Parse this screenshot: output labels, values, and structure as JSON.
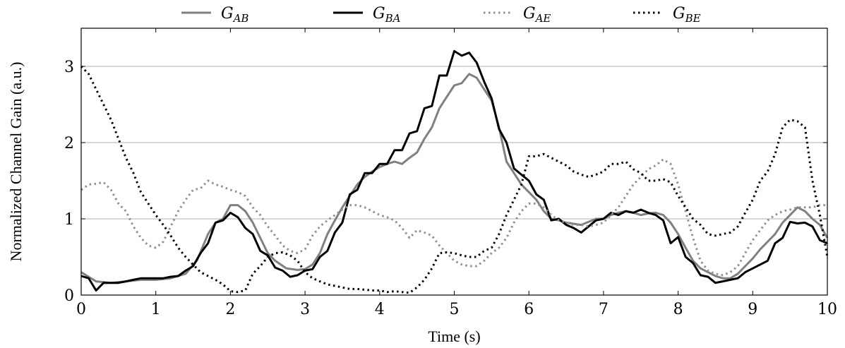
{
  "chart_data": {
    "type": "line",
    "xlabel": "Time (s)",
    "ylabel": "Normalized Channel Gain (a.u.)",
    "xlim": [
      0,
      10
    ],
    "ylim": [
      0,
      3.5
    ],
    "xticks": [
      "0",
      "1",
      "2",
      "3",
      "4",
      "5",
      "6",
      "7",
      "8",
      "9",
      "10"
    ],
    "yticks": [
      "0",
      "1",
      "2",
      "3"
    ],
    "grid": "horizontal",
    "legend_position": "top-center",
    "series": [
      {
        "name": "G_AB",
        "label_main": "G",
        "label_sub": "AB",
        "color": "#808080",
        "dash": "solid",
        "x": [
          0,
          0.2,
          0.4,
          0.6,
          0.8,
          1.0,
          1.2,
          1.4,
          1.55,
          1.7,
          1.8,
          1.9,
          2.0,
          2.1,
          2.2,
          2.3,
          2.4,
          2.5,
          2.6,
          2.75,
          2.9,
          3.0,
          3.1,
          3.2,
          3.3,
          3.4,
          3.5,
          3.6,
          3.7,
          3.8,
          3.9,
          4.0,
          4.1,
          4.2,
          4.3,
          4.4,
          4.5,
          4.6,
          4.7,
          4.8,
          4.9,
          5.0,
          5.1,
          5.2,
          5.3,
          5.4,
          5.5,
          5.6,
          5.7,
          5.8,
          5.9,
          6.0,
          6.1,
          6.2,
          6.3,
          6.4,
          6.5,
          6.7,
          6.9,
          7.0,
          7.1,
          7.2,
          7.3,
          7.4,
          7.5,
          7.6,
          7.7,
          7.8,
          7.9,
          8.0,
          8.1,
          8.2,
          8.3,
          8.4,
          8.5,
          8.6,
          8.7,
          8.8,
          8.9,
          9.0,
          9.1,
          9.2,
          9.3,
          9.4,
          9.5,
          9.6,
          9.7,
          9.8,
          9.9,
          10.0
        ],
        "y": [
          0.3,
          0.18,
          0.16,
          0.18,
          0.2,
          0.2,
          0.22,
          0.28,
          0.45,
          0.8,
          0.95,
          1.0,
          1.18,
          1.18,
          1.1,
          0.95,
          0.75,
          0.55,
          0.45,
          0.35,
          0.33,
          0.34,
          0.4,
          0.55,
          0.8,
          0.98,
          1.15,
          1.3,
          1.45,
          1.55,
          1.62,
          1.68,
          1.72,
          1.75,
          1.72,
          1.8,
          1.87,
          2.05,
          2.2,
          2.45,
          2.6,
          2.75,
          2.78,
          2.9,
          2.85,
          2.7,
          2.55,
          2.2,
          1.75,
          1.6,
          1.45,
          1.35,
          1.25,
          1.1,
          1.0,
          0.98,
          0.95,
          0.92,
          1.0,
          1.0,
          1.05,
          1.08,
          1.1,
          1.08,
          1.05,
          1.07,
          1.08,
          1.05,
          0.95,
          0.8,
          0.62,
          0.45,
          0.35,
          0.3,
          0.25,
          0.22,
          0.22,
          0.28,
          0.38,
          0.48,
          0.6,
          0.7,
          0.8,
          0.95,
          1.05,
          1.15,
          1.1,
          1.0,
          0.92,
          0.75
        ]
      },
      {
        "name": "G_BA",
        "label_main": "G",
        "label_sub": "BA",
        "color": "#000000",
        "dash": "solid",
        "x": [
          0,
          0.1,
          0.2,
          0.3,
          0.4,
          0.5,
          0.6,
          0.7,
          0.8,
          0.9,
          1.0,
          1.1,
          1.2,
          1.3,
          1.4,
          1.5,
          1.6,
          1.7,
          1.8,
          1.9,
          2.0,
          2.1,
          2.2,
          2.3,
          2.4,
          2.5,
          2.6,
          2.7,
          2.8,
          2.9,
          3.0,
          3.1,
          3.2,
          3.3,
          3.4,
          3.5,
          3.6,
          3.7,
          3.8,
          3.9,
          4.0,
          4.1,
          4.2,
          4.3,
          4.4,
          4.5,
          4.6,
          4.7,
          4.8,
          4.9,
          5.0,
          5.1,
          5.2,
          5.3,
          5.4,
          5.5,
          5.6,
          5.7,
          5.8,
          5.9,
          6.0,
          6.1,
          6.2,
          6.3,
          6.4,
          6.5,
          6.6,
          6.7,
          6.8,
          6.9,
          7.0,
          7.1,
          7.2,
          7.3,
          7.4,
          7.5,
          7.6,
          7.7,
          7.8,
          7.9,
          8.0,
          8.1,
          8.2,
          8.3,
          8.4,
          8.5,
          8.6,
          8.7,
          8.8,
          8.9,
          9.0,
          9.1,
          9.2,
          9.3,
          9.4,
          9.5,
          9.6,
          9.7,
          9.8,
          9.9,
          10.0
        ],
        "y": [
          0.25,
          0.22,
          0.06,
          0.16,
          0.16,
          0.16,
          0.18,
          0.2,
          0.22,
          0.22,
          0.22,
          0.22,
          0.24,
          0.25,
          0.32,
          0.38,
          0.55,
          0.68,
          0.95,
          0.98,
          1.08,
          1.02,
          0.88,
          0.8,
          0.58,
          0.52,
          0.36,
          0.32,
          0.24,
          0.26,
          0.32,
          0.34,
          0.5,
          0.58,
          0.82,
          0.95,
          1.32,
          1.38,
          1.6,
          1.6,
          1.72,
          1.72,
          1.9,
          1.9,
          2.12,
          2.15,
          2.45,
          2.48,
          2.88,
          2.88,
          3.2,
          3.14,
          3.18,
          3.05,
          2.8,
          2.58,
          2.18,
          2.0,
          1.66,
          1.58,
          1.5,
          1.32,
          1.25,
          0.98,
          1.0,
          0.92,
          0.88,
          0.82,
          0.9,
          0.98,
          1.0,
          1.08,
          1.05,
          1.1,
          1.08,
          1.12,
          1.08,
          1.05,
          0.98,
          0.68,
          0.76,
          0.5,
          0.42,
          0.26,
          0.24,
          0.16,
          0.18,
          0.2,
          0.22,
          0.3,
          0.35,
          0.4,
          0.45,
          0.68,
          0.75,
          0.96,
          0.94,
          0.95,
          0.9,
          0.72,
          0.68
        ]
      },
      {
        "name": "G_AE",
        "label_main": "G",
        "label_sub": "AE",
        "color": "#909090",
        "dash": "dotted",
        "x": [
          0,
          0.1,
          0.2,
          0.3,
          0.4,
          0.5,
          0.6,
          0.7,
          0.8,
          0.9,
          1.0,
          1.1,
          1.2,
          1.3,
          1.4,
          1.5,
          1.6,
          1.7,
          1.8,
          1.9,
          2.0,
          2.1,
          2.2,
          2.3,
          2.4,
          2.5,
          2.6,
          2.7,
          2.8,
          2.9,
          3.0,
          3.1,
          3.2,
          3.3,
          3.4,
          3.5,
          3.6,
          3.7,
          3.8,
          3.9,
          4.0,
          4.1,
          4.2,
          4.3,
          4.4,
          4.5,
          4.6,
          4.7,
          4.8,
          4.9,
          5.0,
          5.1,
          5.2,
          5.3,
          5.4,
          5.5,
          5.6,
          5.7,
          5.8,
          5.9,
          6.0,
          6.1,
          6.2,
          6.3,
          6.4,
          6.5,
          6.6,
          6.7,
          6.8,
          6.9,
          7.0,
          7.1,
          7.2,
          7.3,
          7.4,
          7.5,
          7.6,
          7.7,
          7.8,
          7.9,
          8.0,
          8.1,
          8.2,
          8.3,
          8.4,
          8.5,
          8.6,
          8.7,
          8.8,
          8.9,
          9.0,
          9.1,
          9.2,
          9.3,
          9.4,
          9.5,
          9.6,
          9.7,
          9.8,
          9.9,
          10.0
        ],
        "y": [
          1.38,
          1.45,
          1.46,
          1.48,
          1.38,
          1.2,
          1.1,
          0.9,
          0.75,
          0.65,
          0.62,
          0.7,
          0.9,
          1.1,
          1.25,
          1.38,
          1.4,
          1.5,
          1.45,
          1.42,
          1.38,
          1.35,
          1.3,
          1.15,
          1.05,
          0.9,
          0.78,
          0.65,
          0.58,
          0.55,
          0.6,
          0.78,
          0.9,
          0.98,
          1.05,
          1.12,
          1.18,
          1.18,
          1.15,
          1.1,
          1.05,
          1.02,
          0.98,
          0.88,
          0.75,
          0.85,
          0.82,
          0.78,
          0.65,
          0.55,
          0.45,
          0.4,
          0.38,
          0.38,
          0.45,
          0.55,
          0.62,
          0.75,
          0.95,
          1.1,
          1.2,
          1.2,
          1.15,
          1.05,
          0.98,
          0.95,
          0.92,
          0.92,
          0.9,
          0.92,
          0.95,
          1.05,
          1.15,
          1.3,
          1.45,
          1.55,
          1.65,
          1.7,
          1.78,
          1.72,
          1.45,
          1.1,
          0.75,
          0.45,
          0.32,
          0.28,
          0.26,
          0.3,
          0.38,
          0.55,
          0.72,
          0.85,
          0.98,
          1.05,
          1.1,
          1.12,
          1.15,
          1.15,
          1.15,
          1.18,
          1.18
        ]
      },
      {
        "name": "G_BE",
        "label_main": "G",
        "label_sub": "BE",
        "color": "#000000",
        "dash": "dotted",
        "x": [
          0,
          0.1,
          0.2,
          0.3,
          0.4,
          0.5,
          0.6,
          0.7,
          0.8,
          0.9,
          1.0,
          1.1,
          1.2,
          1.3,
          1.4,
          1.5,
          1.6,
          1.7,
          1.8,
          1.9,
          2.0,
          2.1,
          2.2,
          2.3,
          2.4,
          2.5,
          2.6,
          2.7,
          2.8,
          2.9,
          3.0,
          3.1,
          3.2,
          3.3,
          3.4,
          3.5,
          3.6,
          3.7,
          3.8,
          3.9,
          4.0,
          4.1,
          4.2,
          4.3,
          4.4,
          4.5,
          4.6,
          4.7,
          4.8,
          4.9,
          5.0,
          5.1,
          5.2,
          5.3,
          5.4,
          5.5,
          5.6,
          5.7,
          5.8,
          5.9,
          6.0,
          6.1,
          6.2,
          6.3,
          6.4,
          6.5,
          6.6,
          6.7,
          6.8,
          6.9,
          7.0,
          7.1,
          7.2,
          7.3,
          7.4,
          7.5,
          7.6,
          7.7,
          7.8,
          7.9,
          8.0,
          8.1,
          8.2,
          8.3,
          8.4,
          8.5,
          8.6,
          8.7,
          8.8,
          8.9,
          9.0,
          9.1,
          9.2,
          9.3,
          9.4,
          9.5,
          9.6,
          9.7,
          9.8,
          9.9,
          10.0
        ],
        "y": [
          3.0,
          2.9,
          2.7,
          2.5,
          2.3,
          2.05,
          1.8,
          1.6,
          1.35,
          1.2,
          1.05,
          0.92,
          0.78,
          0.62,
          0.5,
          0.4,
          0.3,
          0.25,
          0.2,
          0.14,
          0.05,
          0.04,
          0.06,
          0.28,
          0.38,
          0.5,
          0.55,
          0.56,
          0.52,
          0.45,
          0.3,
          0.22,
          0.18,
          0.14,
          0.12,
          0.1,
          0.08,
          0.08,
          0.07,
          0.06,
          0.06,
          0.04,
          0.05,
          0.04,
          0.03,
          0.1,
          0.2,
          0.35,
          0.55,
          0.56,
          0.55,
          0.52,
          0.5,
          0.5,
          0.58,
          0.62,
          0.8,
          1.05,
          1.25,
          1.45,
          1.82,
          1.82,
          1.85,
          1.8,
          1.75,
          1.7,
          1.62,
          1.58,
          1.55,
          1.58,
          1.62,
          1.72,
          1.72,
          1.75,
          1.65,
          1.6,
          1.5,
          1.5,
          1.52,
          1.48,
          1.3,
          1.15,
          1.0,
          0.92,
          0.8,
          0.78,
          0.8,
          0.82,
          0.9,
          1.08,
          1.25,
          1.5,
          1.62,
          1.85,
          2.2,
          2.3,
          2.28,
          2.2,
          1.5,
          1.05,
          0.5
        ]
      }
    ]
  }
}
